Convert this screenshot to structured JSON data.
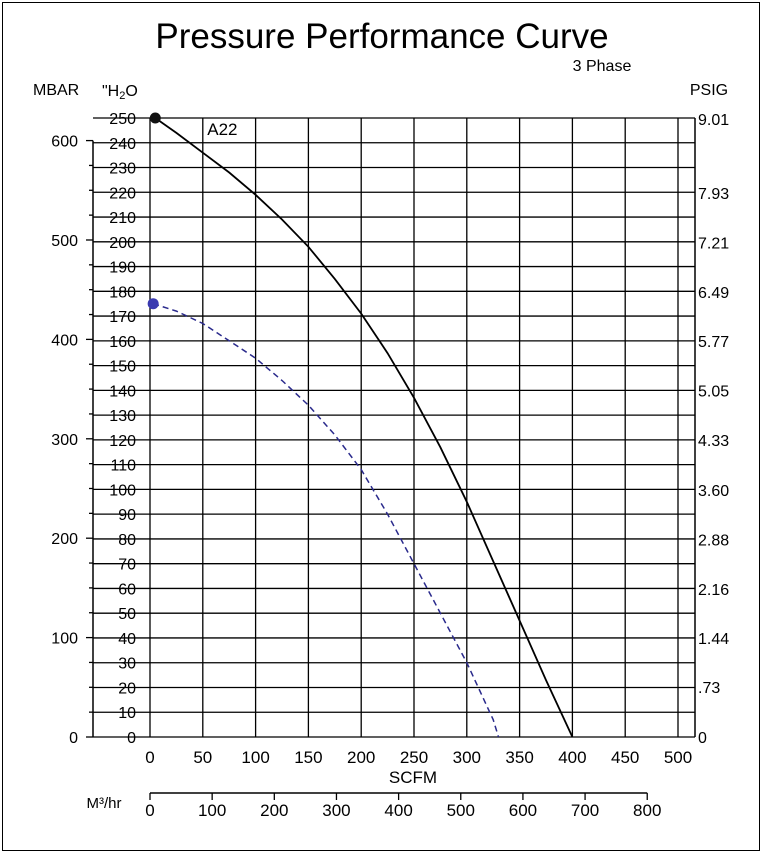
{
  "chart_data": {
    "type": "line",
    "title": "Pressure Performance Curve",
    "subtitle": "3 Phase",
    "xlabel": "SCFM",
    "x_secondary_label": "M³/hr",
    "y_left_outer_label": "MBAR",
    "y_left_inner_label_prefix": "\"H",
    "y_left_inner_label_sub": "2",
    "y_left_inner_label_suffix": "O",
    "y_right_label": "PSIG",
    "xlim": [
      0,
      500
    ],
    "ylim": [
      0,
      250
    ],
    "grid": true,
    "x_ticks": [
      0,
      50,
      100,
      150,
      200,
      250,
      300,
      350,
      400,
      450,
      500
    ],
    "y_ticks_inH2O": [
      0,
      10,
      20,
      30,
      40,
      50,
      60,
      70,
      80,
      90,
      100,
      110,
      120,
      130,
      140,
      150,
      160,
      170,
      180,
      190,
      200,
      210,
      220,
      230,
      240,
      250
    ],
    "mbar_ticks": [
      {
        "value": 0,
        "label": "0"
      },
      {
        "value": 100,
        "label": "100"
      },
      {
        "value": 200,
        "label": "200"
      },
      {
        "value": 300,
        "label": "300"
      },
      {
        "value": 400,
        "label": "400"
      },
      {
        "value": 500,
        "label": "500"
      },
      {
        "value": 600,
        "label": "600"
      }
    ],
    "psig_ticks": [
      {
        "value": 0,
        "label": "0"
      },
      {
        "value": 0.73,
        "label": ".73"
      },
      {
        "value": 1.44,
        "label": "1.44"
      },
      {
        "value": 2.16,
        "label": "2.16"
      },
      {
        "value": 2.88,
        "label": "2.88"
      },
      {
        "value": 3.6,
        "label": "3.60"
      },
      {
        "value": 4.33,
        "label": "4.33"
      },
      {
        "value": 5.05,
        "label": "5.05"
      },
      {
        "value": 5.77,
        "label": "5.77"
      },
      {
        "value": 6.49,
        "label": "6.49"
      },
      {
        "value": 7.21,
        "label": "7.21"
      },
      {
        "value": 7.93,
        "label": "7.93"
      },
      {
        "value": 9.01,
        "label": "9.01"
      }
    ],
    "m3hr_ticks": [
      0,
      100,
      200,
      300,
      400,
      500,
      600,
      700,
      800
    ],
    "series": [
      {
        "name": "A22",
        "color": "#000000",
        "dash": false,
        "marker": {
          "x": 5,
          "y": 250
        },
        "x": [
          5,
          25,
          50,
          75,
          100,
          125,
          150,
          175,
          200,
          225,
          250,
          275,
          300,
          325,
          350,
          375,
          400
        ],
        "y": [
          250,
          244,
          236,
          228,
          219,
          209,
          198,
          185,
          171,
          155,
          137,
          117,
          95,
          71,
          47,
          23,
          0
        ]
      },
      {
        "color": "#2a2a8c",
        "dash": true,
        "marker": {
          "x": 3,
          "y": 175
        },
        "x": [
          3,
          25,
          50,
          75,
          100,
          125,
          150,
          175,
          200,
          225,
          250,
          275,
          300,
          325,
          330
        ],
        "y": [
          175,
          172,
          167,
          160,
          153,
          144,
          134,
          122,
          108,
          90,
          70,
          50,
          30,
          7,
          0
        ]
      }
    ]
  }
}
